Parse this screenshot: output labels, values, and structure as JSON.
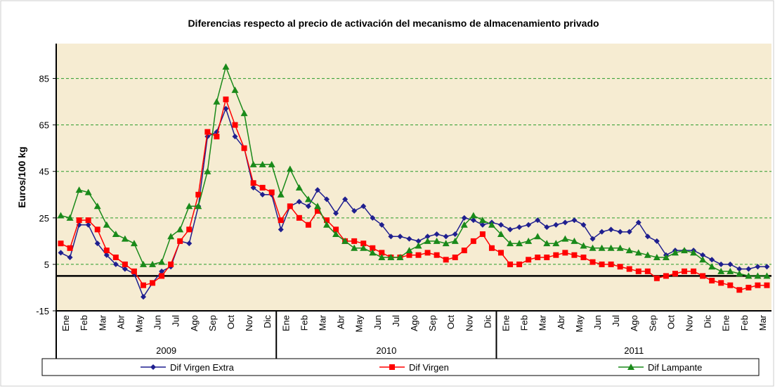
{
  "chart_data": {
    "type": "line",
    "title": "Diferencias respecto al precio de activación del mecanismo de almacenamiento privado",
    "y_label": "Euros/100 kg",
    "categories": [
      "Ene",
      null,
      "Feb",
      null,
      "Mar",
      null,
      "Abr",
      null,
      "May",
      null,
      "Jun",
      null,
      "Jul",
      null,
      "Ago",
      null,
      "Sep",
      null,
      "Oct",
      null,
      "Nov",
      null,
      "Dic",
      null,
      "Ene",
      null,
      "Feb",
      null,
      "Mar",
      null,
      "Abr",
      null,
      "May",
      null,
      "Jun",
      null,
      "Jul",
      null,
      "Ago",
      null,
      "Sep",
      null,
      "Oct",
      null,
      "Nov",
      null,
      "Dic",
      null,
      "Ene",
      null,
      "Feb",
      null,
      "Mar",
      null,
      "Abr",
      null,
      "May",
      null,
      "Jun",
      null,
      "Jul",
      null,
      "Ago",
      null,
      "Sep",
      null,
      "Oct",
      null,
      "Nov",
      null,
      "Dic",
      null,
      "Ene",
      null,
      "Feb",
      null,
      "Mar",
      null
    ],
    "groups": [
      {
        "label": "2009",
        "size": 24
      },
      {
        "label": "2010",
        "size": 24
      },
      {
        "label": "2011",
        "size": 30
      }
    ],
    "series": [
      {
        "name": "Dif Virgen Extra",
        "color": "#1f1f8f",
        "marker": "diamond",
        "values": [
          10,
          8,
          22,
          22,
          14,
          9,
          5,
          3,
          1,
          -9,
          -3,
          2,
          4,
          15,
          14,
          30,
          60,
          62,
          72,
          60,
          55,
          38,
          35,
          35,
          20,
          30,
          32,
          30,
          37,
          33,
          27,
          33,
          28,
          30,
          25,
          22,
          17,
          17,
          16,
          15,
          17,
          18,
          17,
          18,
          25,
          24,
          22,
          23,
          22,
          20,
          21,
          22,
          24,
          21,
          22,
          23,
          24,
          22,
          16,
          19,
          20,
          19,
          19,
          23,
          17,
          15,
          9,
          11,
          11,
          11,
          9,
          7,
          5,
          5,
          3,
          3,
          4,
          4
        ]
      },
      {
        "name": "Dif Virgen",
        "color": "#ff0000",
        "marker": "square",
        "values": [
          14,
          12,
          24,
          24,
          20,
          11,
          8,
          5,
          2,
          -4,
          -3,
          0,
          5,
          15,
          20,
          35,
          62,
          60,
          76,
          65,
          55,
          40,
          38,
          36,
          24,
          30,
          25,
          22,
          28,
          24,
          20,
          15,
          15,
          14,
          12,
          10,
          8,
          8,
          9,
          9,
          10,
          9,
          7,
          8,
          11,
          15,
          18,
          12,
          10,
          5,
          5,
          7,
          8,
          8,
          9,
          10,
          9,
          8,
          6,
          5,
          5,
          4,
          3,
          2,
          2,
          -1,
          0,
          1,
          2,
          2,
          0,
          -2,
          -3,
          -4,
          -6,
          -5,
          -4,
          -4
        ]
      },
      {
        "name": "Dif Lampante",
        "color": "#1a8a1a",
        "marker": "triangle",
        "values": [
          26,
          25,
          37,
          36,
          30,
          22,
          18,
          16,
          14,
          5,
          5,
          6,
          17,
          20,
          30,
          30,
          45,
          75,
          90,
          80,
          70,
          48,
          48,
          48,
          35,
          46,
          38,
          33,
          30,
          22,
          18,
          15,
          12,
          12,
          10,
          8,
          8,
          8,
          11,
          13,
          15,
          15,
          14,
          15,
          22,
          26,
          24,
          22,
          18,
          14,
          14,
          15,
          17,
          14,
          14,
          16,
          15,
          13,
          12,
          12,
          12,
          12,
          11,
          10,
          9,
          8,
          8,
          10,
          11,
          10,
          7,
          4,
          2,
          2,
          1,
          0,
          0,
          0
        ]
      }
    ],
    "ylim": [
      -15,
      100
    ],
    "yticks": [
      -15,
      5,
      25,
      45,
      65,
      85
    ],
    "grid": true,
    "hline": 0
  }
}
